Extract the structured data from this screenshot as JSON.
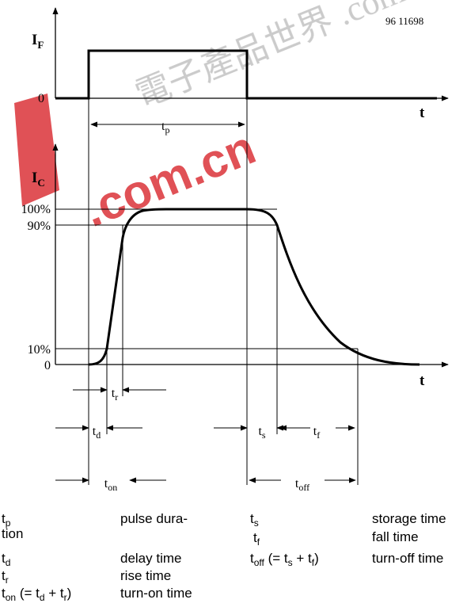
{
  "figure_id": "96 11698",
  "watermark": "電子產品世界 .com.cn",
  "labels": {
    "if_main": "I",
    "if_sub": "F",
    "ic_main": "I",
    "ic_sub": "C",
    "zero": "0",
    "t": "t",
    "pct_100": "100%",
    "pct_90": "90%",
    "pct_10": "10%"
  },
  "intervals": {
    "tp": {
      "main": "t",
      "sub": "p"
    },
    "tr": {
      "main": "t",
      "sub": "r"
    },
    "td": {
      "main": "t",
      "sub": "d"
    },
    "ts": {
      "main": "t",
      "sub": "s"
    },
    "tf": {
      "main": "t",
      "sub": "f"
    },
    "ton": {
      "main": "t",
      "sub": "on"
    },
    "toff": {
      "main": "t",
      "sub": "off"
    }
  },
  "legend": {
    "tp_sym_main": "t",
    "tp_sym_sub": "p",
    "tp_desc_a": "pulse dura-",
    "tp_desc_b": "tion",
    "td_sym_main": "t",
    "td_sym_sub": "d",
    "td_desc": "delay time",
    "tr_sym_main": "t",
    "tr_sym_sub": "r",
    "tr_desc": "rise time",
    "ton_sym_main": "t",
    "ton_sym_sub": "on",
    "ton_eq_a": " (= t",
    "ton_eq_b": "d",
    "ton_eq_c": " + t",
    "ton_eq_d": "r",
    "ton_eq_e": ")",
    "ton_desc": "turn-on time",
    "ts_sym_main": "t",
    "ts_sym_sub": "s",
    "ts_desc": "storage time",
    "tf_sym_main": "t",
    "tf_sym_sub": "f",
    "tf_desc": "fall time",
    "toff_sym_main": "t",
    "toff_sym_sub": "off",
    "toff_eq_a": " (= t",
    "toff_eq_b": "s",
    "toff_eq_c": " + t",
    "toff_eq_d": "f",
    "toff_eq_e": ")",
    "toff_desc": "turn-off time"
  }
}
